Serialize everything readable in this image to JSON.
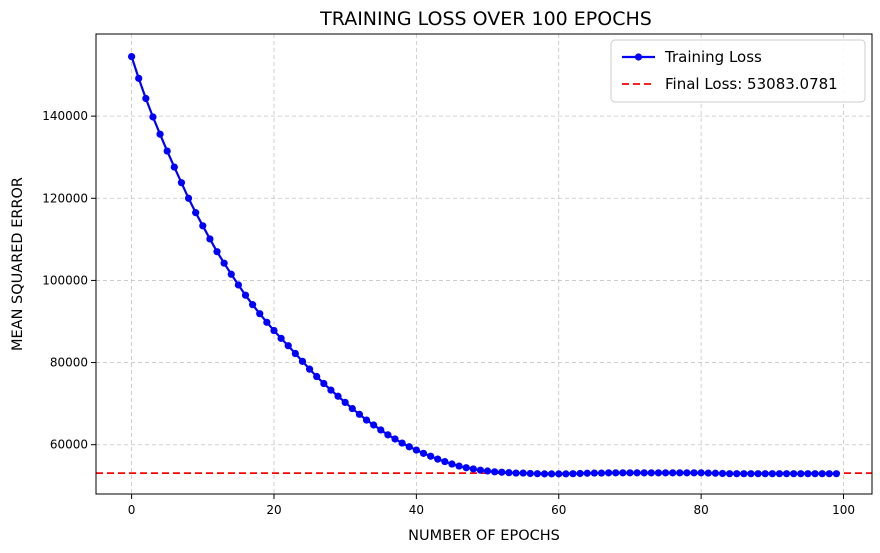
{
  "chart_data": {
    "type": "line",
    "title": "TRAINING LOSS OVER 100 EPOCHS",
    "xlabel": "NUMBER OF EPOCHS",
    "ylabel": "MEAN SQUARED ERROR",
    "xlim": [
      -5,
      104
    ],
    "ylim": [
      48000,
      160000
    ],
    "xticks": [
      0,
      20,
      40,
      60,
      80,
      100
    ],
    "yticks": [
      60000,
      80000,
      100000,
      120000,
      140000
    ],
    "xtick_labels": [
      "0",
      "20",
      "40",
      "60",
      "80",
      "100"
    ],
    "ytick_labels": [
      "60000",
      "80000",
      "100000",
      "120000",
      "140000"
    ],
    "grid": true,
    "legend_position": "top-right",
    "series": [
      {
        "name": "Training Loss",
        "color": "#0000ff",
        "marker": "circle",
        "x": [
          0,
          1,
          2,
          3,
          4,
          5,
          6,
          7,
          8,
          9,
          10,
          11,
          12,
          13,
          14,
          15,
          16,
          17,
          18,
          19,
          20,
          21,
          22,
          23,
          24,
          25,
          26,
          27,
          28,
          29,
          30,
          31,
          32,
          33,
          34,
          35,
          36,
          37,
          38,
          39,
          40,
          41,
          42,
          43,
          44,
          45,
          46,
          47,
          48,
          49,
          50,
          51,
          52,
          53,
          54,
          55,
          56,
          57,
          58,
          59,
          60,
          61,
          62,
          63,
          64,
          65,
          66,
          67,
          68,
          69,
          70,
          71,
          72,
          73,
          74,
          75,
          76,
          77,
          78,
          79,
          80,
          81,
          82,
          83,
          84,
          85,
          86,
          87,
          88,
          89,
          90,
          91,
          92,
          93,
          94,
          95,
          96,
          97,
          98,
          99
        ],
        "values": [
          154500,
          149200,
          144300,
          139800,
          135600,
          131500,
          127600,
          123800,
          120000,
          116500,
          113300,
          110100,
          107000,
          104200,
          101500,
          98900,
          96400,
          94100,
          91900,
          89800,
          87800,
          85900,
          84100,
          82200,
          80300,
          78400,
          76600,
          74900,
          73300,
          71800,
          70300,
          68800,
          67400,
          66000,
          64800,
          63600,
          62400,
          61400,
          60400,
          59500,
          58700,
          57900,
          57200,
          56500,
          55900,
          55300,
          54800,
          54400,
          54100,
          53800,
          53600,
          53400,
          53300,
          53200,
          53100,
          53100,
          53000,
          52950,
          52900,
          52900,
          52900,
          52900,
          52950,
          53000,
          53050,
          53100,
          53100,
          53150,
          53150,
          53150,
          53150,
          53150,
          53150,
          53150,
          53150,
          53150,
          53150,
          53150,
          53150,
          53150,
          53150,
          53100,
          53050,
          53000,
          52950,
          52950,
          52950,
          52950,
          52950,
          52950,
          52950,
          52950,
          52950,
          52950,
          52950,
          52950,
          52950,
          52950,
          52950,
          52950
        ]
      }
    ],
    "reference_line": {
      "name": "Final Loss: 53083.0781",
      "value": 53083.0781,
      "color": "#ff0000",
      "style": "dashed"
    }
  }
}
